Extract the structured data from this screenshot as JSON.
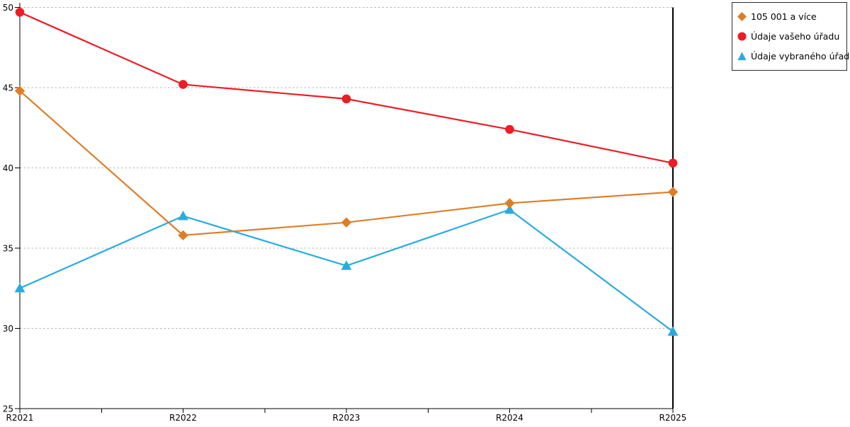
{
  "chart_data": {
    "type": "line",
    "title": "",
    "xlabel": "",
    "ylabel": "",
    "x_categories": [
      "R2021",
      "R2022",
      "R2023",
      "R2024",
      "R2025"
    ],
    "series": [
      {
        "name": "105 001 a více",
        "marker": "diamond",
        "color": "#DF7D26",
        "values": [
          44.8,
          35.8,
          36.6,
          37.8,
          38.5
        ]
      },
      {
        "name": "Údaje vašeho úřadu",
        "marker": "circle",
        "color": "#EE1C24",
        "values": [
          49.7,
          45.2,
          44.3,
          42.4,
          40.3
        ]
      },
      {
        "name": "Údaje vybraného úřadu",
        "marker": "triangle",
        "color": "#29ABE2",
        "values": [
          32.5,
          37.0,
          33.9,
          37.4,
          29.8
        ]
      }
    ],
    "y_ticks": [
      25,
      30,
      35,
      40,
      45,
      50
    ],
    "ylim": [
      25,
      50
    ],
    "grid": "dashed horizontal gridlines at each y tick",
    "gridline_color": "#b3b3b3",
    "axis_color": "#000000",
    "legend_position": "top-right",
    "legend_border": true
  }
}
